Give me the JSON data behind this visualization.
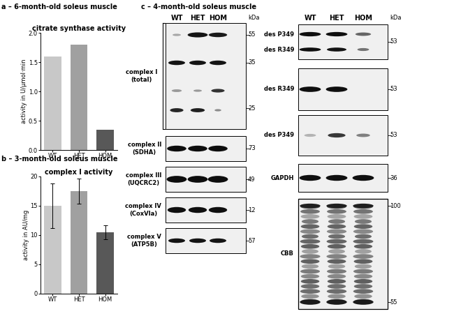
{
  "fig_width": 6.5,
  "fig_height": 4.53,
  "background_color": "#ffffff",
  "panel_a_title": "a – 6-month-old soleus muscle",
  "panel_a_subtitle": "citrate synthase activity",
  "panel_a_ylabel": "activity in U/µmol·min",
  "panel_a_categories": [
    "WT",
    "HET",
    "HOM"
  ],
  "panel_a_values": [
    1.6,
    1.8,
    0.35
  ],
  "panel_a_colors": [
    "#c8c8c8",
    "#a0a0a0",
    "#585858"
  ],
  "panel_a_ylim": [
    0,
    2.0
  ],
  "panel_a_yticks": [
    0.0,
    0.5,
    1.0,
    1.5,
    2.0
  ],
  "panel_b_title": "b – 3-month-old soleus muscle",
  "panel_b_subtitle": "complex I activity",
  "panel_b_ylabel": "activity in AU/mg",
  "panel_b_categories": [
    "WT",
    "HET",
    "HOM"
  ],
  "panel_b_values": [
    15.0,
    17.5,
    10.5
  ],
  "panel_b_errors": [
    3.8,
    2.2,
    1.2
  ],
  "panel_b_colors": [
    "#c8c8c8",
    "#a0a0a0",
    "#585858"
  ],
  "panel_b_ylim": [
    0,
    20
  ],
  "panel_b_yticks": [
    0,
    5,
    10,
    15,
    20
  ],
  "panel_c_title": "c – 4-month-old soleus muscle",
  "text_color": "#000000",
  "panel_label_fontsize": 7,
  "subtitle_fontsize": 7,
  "axis_label_fontsize": 6,
  "tick_fontsize": 6,
  "blot_label_fontsize": 6,
  "kda_fontsize": 6,
  "header_fontsize": 7
}
